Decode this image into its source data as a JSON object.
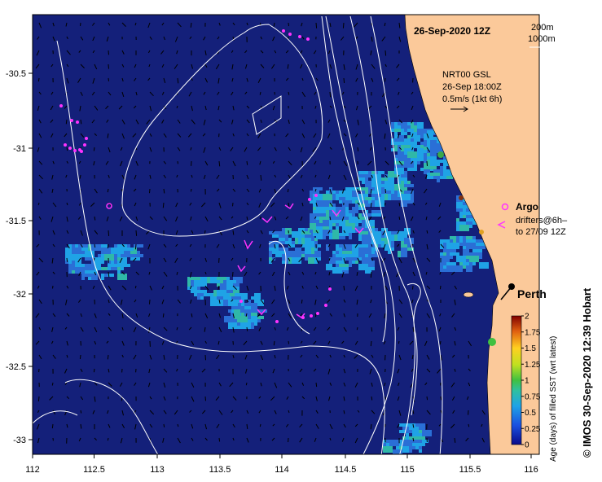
{
  "map": {
    "date_title": "26-Sep-2020 12Z",
    "depth_legend": [
      "200m",
      "1000m"
    ],
    "current_note": [
      "NRT00 GSL",
      "26-Sep 18:00Z",
      "0.5m/s (1kt 6h)"
    ],
    "legend": {
      "argo": "Argo",
      "drifters_line1": "drifters@6h–",
      "drifters_line2": "to 27/09 12Z"
    },
    "city": "Perth",
    "credit": "© IMOS 30-Sep-2020 12:39 Hobart",
    "x_ticks": [
      "112",
      "112.5",
      "113",
      "113.5",
      "114",
      "114.5",
      "115",
      "115.5",
      "116"
    ],
    "y_ticks": [
      "-30.5",
      "-31",
      "-31.5",
      "-32",
      "-32.5",
      "-33"
    ],
    "colorbar": {
      "title": "Age (days) of filled SST (wrt latest)",
      "ticks": [
        "2",
        "1.75",
        "1.5",
        "1.25",
        "1",
        "0.75",
        "0.5",
        "0.25",
        "0"
      ]
    },
    "colors": {
      "ocean": "#14207a",
      "land": "#fbc99a",
      "patch_light": "#1fa3e6",
      "patch_mid": "#2a6fd6",
      "patch_teal": "#2fb8a8",
      "drifter": "#ff33ff",
      "contour": "#ffffff"
    }
  }
}
